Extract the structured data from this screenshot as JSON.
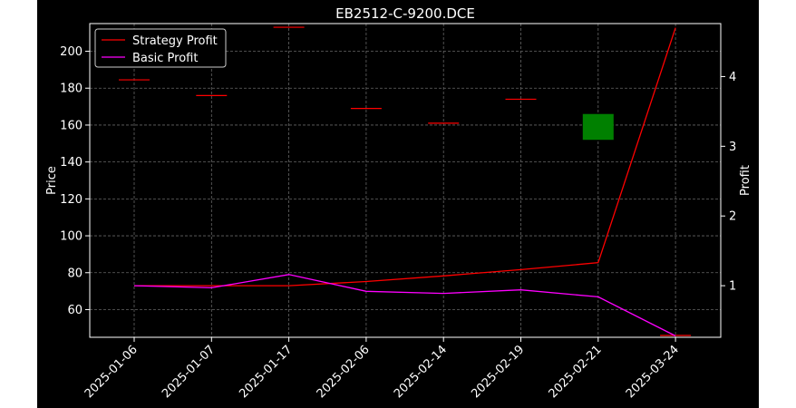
{
  "chart_data": {
    "type": "line",
    "title": "EB2512-C-9200.DCE",
    "xlabel": "",
    "ylabel_left": "Price",
    "ylabel_right": "Profit",
    "categories": [
      "2025-01-06",
      "2025-01-07",
      "2025-01-17",
      "2025-02-06",
      "2025-02-14",
      "2025-02-19",
      "2025-02-21",
      "2025-03-24"
    ],
    "left_axis": {
      "ylim": [
        45,
        215
      ],
      "ticks": [
        60,
        80,
        100,
        120,
        140,
        160,
        180,
        200
      ]
    },
    "right_axis": {
      "ylim": [
        0.26,
        4.76
      ],
      "ticks": [
        1,
        2,
        3,
        4
      ]
    },
    "grid": true,
    "legend_position": "top-left",
    "background": "#000000",
    "price_candles": [
      {
        "x": "2025-01-06",
        "open": 184.5,
        "close": 184.5,
        "color": "#ff0000"
      },
      {
        "x": "2025-01-07",
        "open": 176,
        "close": 176,
        "color": "#ff0000"
      },
      {
        "x": "2025-01-17",
        "open": 213,
        "close": 213,
        "color": "#ff0000"
      },
      {
        "x": "2025-02-06",
        "open": 169,
        "close": 169,
        "color": "#ff0000"
      },
      {
        "x": "2025-02-14",
        "open": 161,
        "close": 161,
        "color": "#ff0000"
      },
      {
        "x": "2025-02-19",
        "open": 174,
        "close": 174,
        "color": "#ff0000"
      },
      {
        "x": "2025-02-21",
        "open": 152,
        "close": 166,
        "color": "#008000"
      },
      {
        "x": "2025-03-24",
        "open": 46,
        "close": 46,
        "color": "#ff0000"
      }
    ],
    "series": [
      {
        "name": "Strategy Profit",
        "axis": "right",
        "color": "#ff0000",
        "values": [
          1.0,
          1.0,
          1.0,
          1.06,
          1.14,
          1.23,
          1.33,
          4.7
        ]
      },
      {
        "name": "Basic Profit",
        "axis": "right",
        "color": "#ff00ff",
        "values": [
          1.0,
          0.97,
          1.16,
          0.92,
          0.89,
          0.94,
          0.84,
          0.28
        ]
      }
    ]
  }
}
